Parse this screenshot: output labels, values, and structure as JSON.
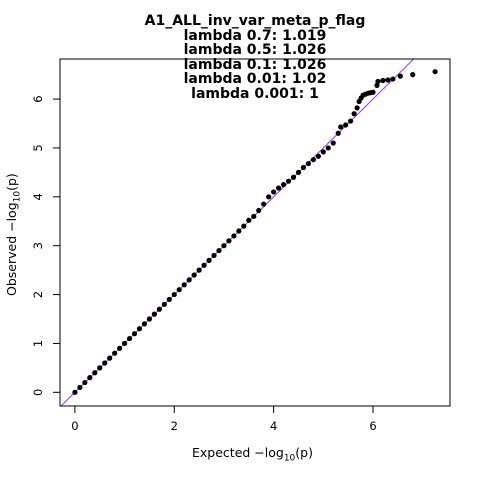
{
  "chart_data": {
    "type": "scatter",
    "title": "A1_ALL_inv_var_meta_p_flag",
    "subtitle_lines": [
      "lambda 0.7: 1.019",
      "lambda 0.5: 1.026",
      "lambda 0.1: 1.026",
      "lambda 0.01: 1.02",
      "lambda 0.001: 1"
    ],
    "xlabel": {
      "main": "Expected  −log",
      "sub": "10",
      "tail": "(p)"
    },
    "ylabel": {
      "main": "Observed  −log",
      "sub": "10",
      "tail": "(p)"
    },
    "xlim": [
      -0.3,
      7.55
    ],
    "ylim": [
      -0.28,
      6.82
    ],
    "x_ticks": [
      0,
      2,
      4,
      6
    ],
    "y_ticks": [
      0,
      1,
      2,
      3,
      4,
      5,
      6
    ],
    "x_tick_labels": [
      "0",
      "2",
      "4",
      "6"
    ],
    "y_tick_labels": [
      "0",
      "1",
      "2",
      "3",
      "4",
      "5",
      "6"
    ],
    "reference_line": {
      "slope": 1,
      "intercept": 0,
      "color": "#9933ff"
    },
    "point_color": "#000000",
    "grid": false,
    "series": [
      {
        "points": [
          [
            0.0,
            0.0
          ],
          [
            0.1,
            0.1
          ],
          [
            0.2,
            0.2
          ],
          [
            0.3,
            0.3
          ],
          [
            0.4,
            0.4
          ],
          [
            0.5,
            0.5
          ],
          [
            0.6,
            0.6
          ],
          [
            0.7,
            0.7
          ],
          [
            0.8,
            0.8
          ],
          [
            0.9,
            0.9
          ],
          [
            1.0,
            1.0
          ],
          [
            1.1,
            1.1
          ],
          [
            1.2,
            1.2
          ],
          [
            1.3,
            1.3
          ],
          [
            1.4,
            1.4
          ],
          [
            1.5,
            1.5
          ],
          [
            1.6,
            1.6
          ],
          [
            1.7,
            1.7
          ],
          [
            1.8,
            1.8
          ],
          [
            1.9,
            1.9
          ],
          [
            2.0,
            2.0
          ],
          [
            2.1,
            2.1
          ],
          [
            2.2,
            2.2
          ],
          [
            2.3,
            2.3
          ],
          [
            2.4,
            2.4
          ],
          [
            2.5,
            2.5
          ],
          [
            2.6,
            2.6
          ],
          [
            2.7,
            2.7
          ],
          [
            2.8,
            2.8
          ],
          [
            2.9,
            2.9
          ],
          [
            3.0,
            3.0
          ],
          [
            3.1,
            3.1
          ],
          [
            3.2,
            3.2
          ],
          [
            3.3,
            3.3
          ],
          [
            3.4,
            3.4
          ],
          [
            3.5,
            3.52
          ],
          [
            3.6,
            3.6
          ],
          [
            3.7,
            3.72
          ],
          [
            3.8,
            3.85
          ],
          [
            3.9,
            4.0
          ],
          [
            4.0,
            4.1
          ],
          [
            4.1,
            4.18
          ],
          [
            4.2,
            4.25
          ],
          [
            4.3,
            4.32
          ],
          [
            4.4,
            4.4
          ],
          [
            4.5,
            4.5
          ],
          [
            4.6,
            4.6
          ],
          [
            4.7,
            4.68
          ],
          [
            4.8,
            4.76
          ],
          [
            4.9,
            4.83
          ],
          [
            5.0,
            4.92
          ],
          [
            5.1,
            5.0
          ],
          [
            5.2,
            5.1
          ],
          [
            5.3,
            5.3
          ],
          [
            5.35,
            5.43
          ],
          [
            5.45,
            5.47
          ],
          [
            5.55,
            5.55
          ],
          [
            5.62,
            5.7
          ],
          [
            5.68,
            5.82
          ],
          [
            5.72,
            5.95
          ],
          [
            5.76,
            6.02
          ],
          [
            5.8,
            6.08
          ],
          [
            5.85,
            6.1
          ],
          [
            5.9,
            6.12
          ],
          [
            5.95,
            6.13
          ],
          [
            6.0,
            6.14
          ],
          [
            6.08,
            6.28
          ],
          [
            6.1,
            6.36
          ],
          [
            6.2,
            6.38
          ],
          [
            6.3,
            6.39
          ],
          [
            6.4,
            6.41
          ],
          [
            6.55,
            6.47
          ],
          [
            6.8,
            6.5
          ],
          [
            7.25,
            6.56
          ]
        ]
      }
    ]
  }
}
